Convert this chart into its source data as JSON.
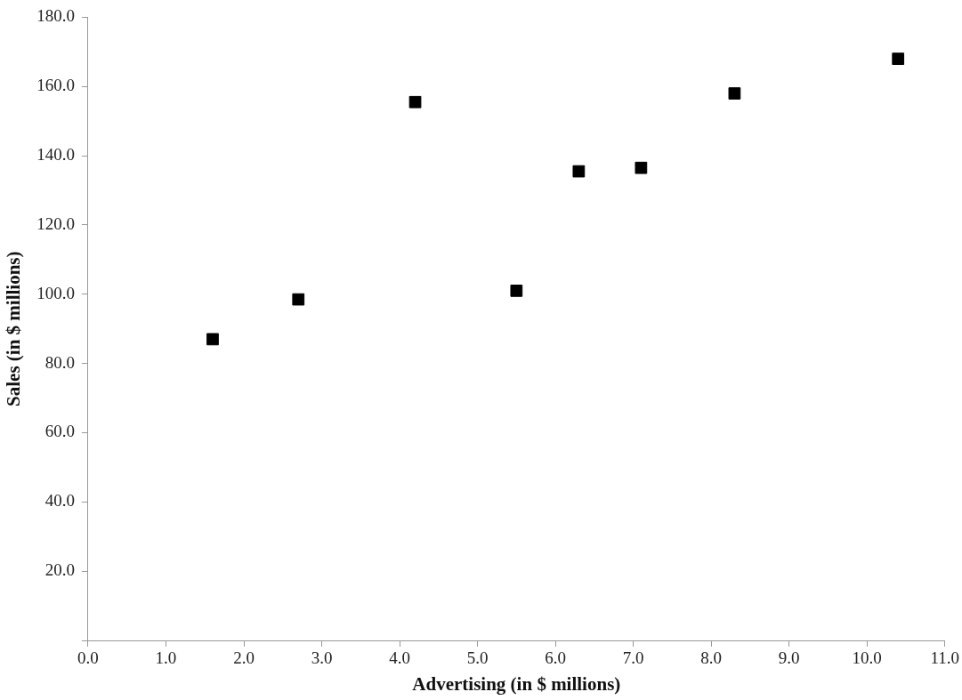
{
  "chart_data": {
    "type": "scatter",
    "xlabel": "Advertising (in $ millions)",
    "ylabel": "Sales (in $ millions)",
    "x": [
      1.6,
      2.7,
      4.2,
      5.5,
      6.3,
      7.1,
      8.3,
      10.4
    ],
    "series": [
      {
        "color": "#000000",
        "values": [
          87,
          98.5,
          155.5,
          101,
          135.5,
          136.5,
          158,
          168
        ]
      }
    ],
    "xlim": [
      0,
      11
    ],
    "xticks": [
      {
        "value": 0,
        "label": "0.0"
      },
      {
        "value": 1,
        "label": "1.0"
      },
      {
        "value": 2,
        "label": "2.0"
      },
      {
        "value": 3,
        "label": "3.0"
      },
      {
        "value": 4,
        "label": "4.0"
      },
      {
        "value": 5,
        "label": "5.0"
      },
      {
        "value": 6,
        "label": "6.0"
      },
      {
        "value": 7,
        "label": "7.0"
      },
      {
        "value": 8,
        "label": "8.0"
      },
      {
        "value": 9,
        "label": "9.0"
      },
      {
        "value": 10,
        "label": "10.0"
      },
      {
        "value": 11,
        "label": "11.0"
      }
    ],
    "ylim": [
      0,
      180
    ],
    "yticks": [
      {
        "value": 0,
        "label": null
      },
      {
        "value": 20,
        "label": "20.0"
      },
      {
        "value": 40,
        "label": "40.0"
      },
      {
        "value": 60,
        "label": "60.0"
      },
      {
        "value": 80,
        "label": "80.0"
      },
      {
        "value": 100,
        "label": "100.0"
      },
      {
        "value": 120,
        "label": "120.0"
      },
      {
        "value": 140,
        "label": "140.0"
      },
      {
        "value": 160,
        "label": "160.0"
      },
      {
        "value": 180,
        "label": "180.0"
      }
    ],
    "grid": false,
    "legend": false,
    "marker": "square"
  }
}
